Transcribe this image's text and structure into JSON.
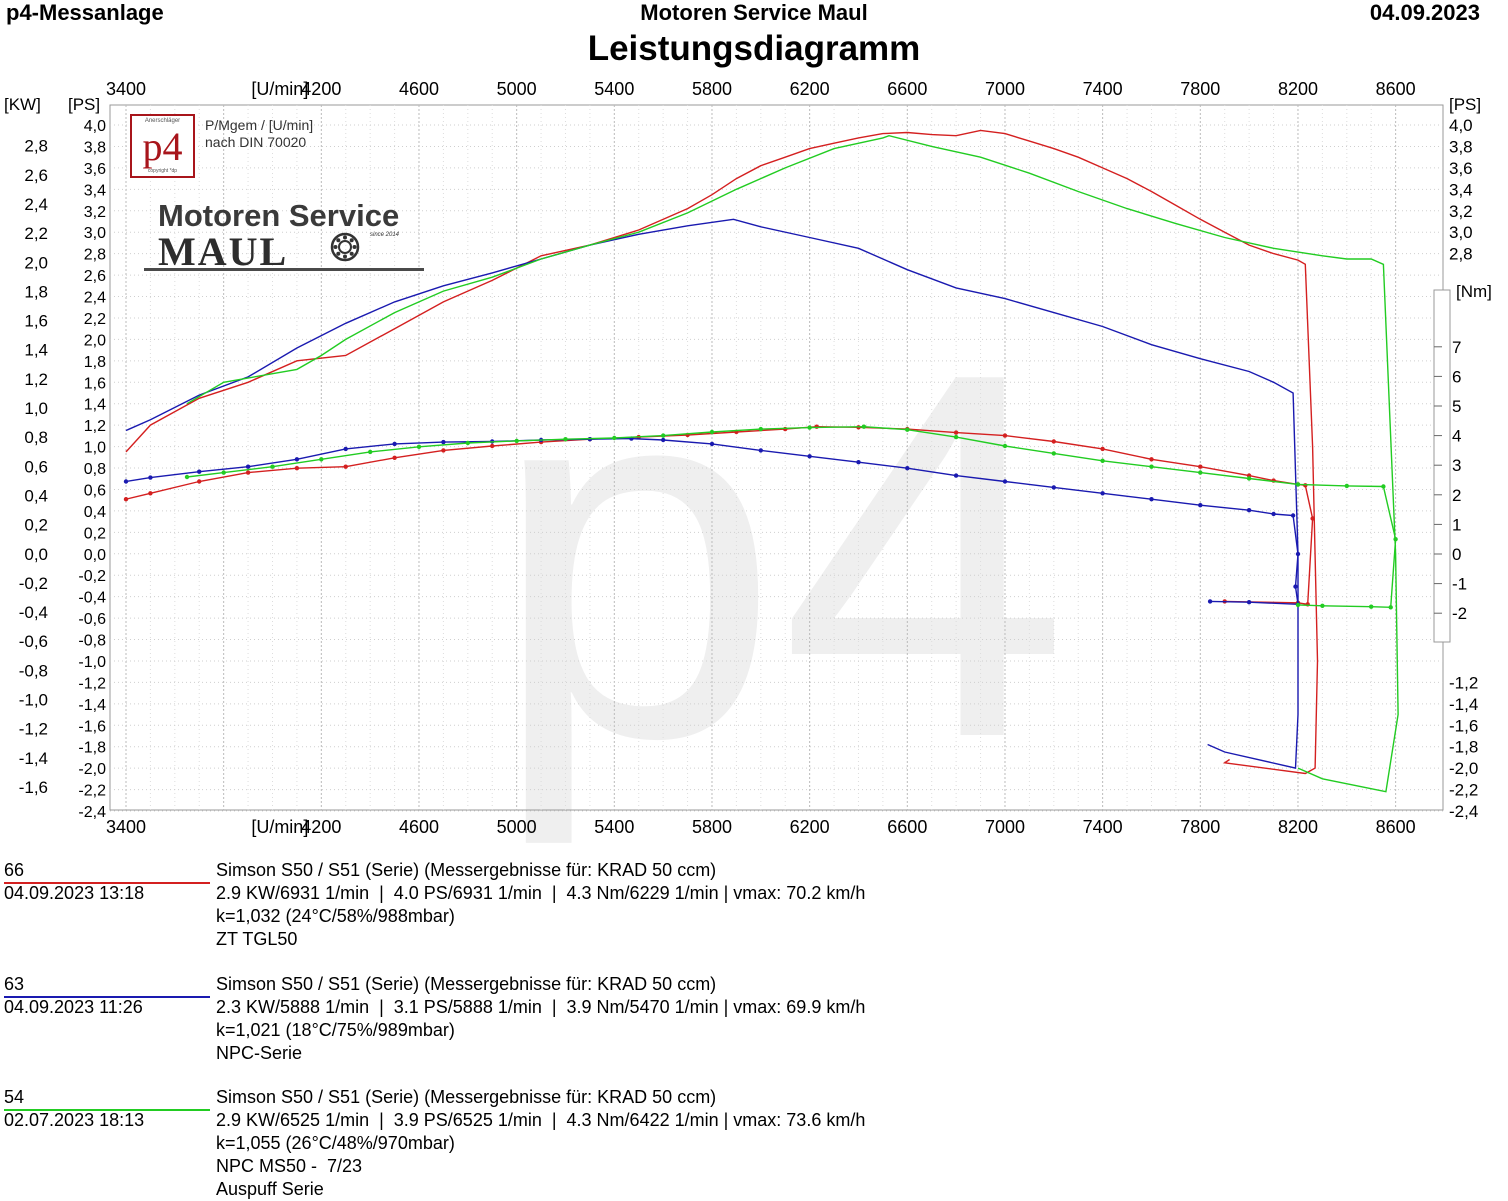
{
  "header": {
    "left": "p4-Messanlage",
    "center": "Motoren Service Maul",
    "right": "04.09.2023",
    "title": "Leistungsdiagramm"
  },
  "logos": {
    "p4_mark_top": "Anerschläger",
    "p4_mark": "p4",
    "p4_mark_bottom": "copyright *dp",
    "brand_line1": "Motoren Service",
    "brand_line2": "MAUL",
    "brand_since": "since 2014"
  },
  "annotation": {
    "line1": "P/Mgem / [U/min]",
    "line2": "nach DIN 70020"
  },
  "chart_data": {
    "type": "line",
    "title": "Leistungsdiagramm",
    "x_axis": {
      "label": "[U/min]",
      "range": [
        3400,
        8700
      ],
      "ticks": [
        3400,
        4200,
        4600,
        5000,
        5400,
        5800,
        6200,
        6600,
        7000,
        7400,
        7800,
        8200,
        8600
      ]
    },
    "kw_axis": {
      "label": "[KW]",
      "ticks": [
        "2,8",
        "2,6",
        "2,4",
        "2,2",
        "2,0",
        "1,8",
        "1,6",
        "1,4",
        "1,2",
        "1,0",
        "0,8",
        "0,6",
        "0,4",
        "0,2",
        "0,0",
        "-0,2",
        "-0,4",
        "-0,6",
        "-0,8",
        "-1,0",
        "-1,2",
        "-1,4",
        "-1,6"
      ]
    },
    "ps_axis": {
      "label": "[PS]",
      "range": [
        -2.4,
        4.0
      ],
      "ticks": [
        "4,0",
        "3,8",
        "3,6",
        "3,4",
        "3,2",
        "3,0",
        "2,8",
        "2,6",
        "2,4",
        "2,2",
        "2,0",
        "1,8",
        "1,6",
        "1,4",
        "1,2",
        "1,0",
        "0,8",
        "0,6",
        "0,4",
        "0,2",
        "0,0",
        "-0,2",
        "-0,4",
        "-0,6",
        "-0,8",
        "-1,0",
        "-1,2",
        "-1,4",
        "-1,6",
        "-1,8",
        "-2,0",
        "-2,2",
        "-2,4"
      ]
    },
    "right_ps_axis": {
      "label": "[PS]",
      "ticks": [
        "4,0",
        "3,8",
        "3,6",
        "3,4",
        "3,2",
        "3,0",
        "2,8",
        "-1,2",
        "-1,4",
        "-1,6",
        "-1,8",
        "-2,0",
        "-2,2",
        "-2,4"
      ]
    },
    "nm_axis": {
      "label": "[Nm]",
      "range": [
        -2,
        7
      ],
      "ticks": [
        "7",
        "6",
        "5",
        "4",
        "3",
        "2",
        "1",
        "0",
        "-1",
        "-2"
      ]
    },
    "grid": true,
    "watermark": "p4",
    "series": [
      {
        "name": "66",
        "color": "#d42020",
        "power_ps": [
          [
            3400,
            0.95
          ],
          [
            3500,
            1.2
          ],
          [
            3700,
            1.45
          ],
          [
            3900,
            1.6
          ],
          [
            4100,
            1.8
          ],
          [
            4300,
            1.85
          ],
          [
            4500,
            2.1
          ],
          [
            4700,
            2.35
          ],
          [
            4900,
            2.55
          ],
          [
            5100,
            2.78
          ],
          [
            5300,
            2.88
          ],
          [
            5500,
            3.02
          ],
          [
            5700,
            3.22
          ],
          [
            5800,
            3.35
          ],
          [
            5900,
            3.5
          ],
          [
            6000,
            3.62
          ],
          [
            6100,
            3.7
          ],
          [
            6200,
            3.78
          ],
          [
            6300,
            3.83
          ],
          [
            6400,
            3.88
          ],
          [
            6500,
            3.92
          ],
          [
            6600,
            3.93
          ],
          [
            6700,
            3.91
          ],
          [
            6800,
            3.9
          ],
          [
            6900,
            3.95
          ],
          [
            7000,
            3.92
          ],
          [
            7100,
            3.85
          ],
          [
            7200,
            3.78
          ],
          [
            7300,
            3.7
          ],
          [
            7400,
            3.6
          ],
          [
            7500,
            3.5
          ],
          [
            7600,
            3.38
          ],
          [
            7700,
            3.25
          ],
          [
            7800,
            3.12
          ],
          [
            7900,
            3.0
          ],
          [
            8000,
            2.88
          ],
          [
            8100,
            2.8
          ],
          [
            8200,
            2.74
          ],
          [
            8230,
            2.7
          ],
          [
            8260,
            1.0
          ],
          [
            8280,
            -1.0
          ],
          [
            8270,
            -2.0
          ],
          [
            8230,
            -2.05
          ],
          [
            7900,
            -1.95
          ],
          [
            7920,
            -1.92
          ]
        ],
        "torque_nm": [
          [
            3400,
            1.85
          ],
          [
            3500,
            2.05
          ],
          [
            3700,
            2.45
          ],
          [
            3900,
            2.75
          ],
          [
            4100,
            2.9
          ],
          [
            4300,
            2.95
          ],
          [
            4500,
            3.25
          ],
          [
            4700,
            3.5
          ],
          [
            4900,
            3.65
          ],
          [
            5100,
            3.78
          ],
          [
            5300,
            3.88
          ],
          [
            5500,
            3.95
          ],
          [
            5700,
            4.02
          ],
          [
            5900,
            4.12
          ],
          [
            6100,
            4.22
          ],
          [
            6229,
            4.3
          ],
          [
            6400,
            4.28
          ],
          [
            6600,
            4.22
          ],
          [
            6800,
            4.1
          ],
          [
            7000,
            4.0
          ],
          [
            7200,
            3.8
          ],
          [
            7400,
            3.55
          ],
          [
            7600,
            3.2
          ],
          [
            7800,
            2.95
          ],
          [
            8000,
            2.65
          ],
          [
            8100,
            2.48
          ],
          [
            8200,
            2.35
          ],
          [
            8230,
            2.32
          ],
          [
            8260,
            1.2
          ],
          [
            8240,
            -1.7
          ],
          [
            8200,
            -1.65
          ],
          [
            7900,
            -1.6
          ]
        ]
      },
      {
        "name": "63",
        "color": "#1a1ab0",
        "power_ps": [
          [
            3400,
            1.15
          ],
          [
            3500,
            1.25
          ],
          [
            3700,
            1.48
          ],
          [
            3900,
            1.65
          ],
          [
            4100,
            1.92
          ],
          [
            4300,
            2.15
          ],
          [
            4500,
            2.35
          ],
          [
            4700,
            2.5
          ],
          [
            4900,
            2.62
          ],
          [
            5100,
            2.75
          ],
          [
            5300,
            2.88
          ],
          [
            5500,
            2.98
          ],
          [
            5700,
            3.06
          ],
          [
            5888,
            3.12
          ],
          [
            6000,
            3.05
          ],
          [
            6200,
            2.95
          ],
          [
            6400,
            2.85
          ],
          [
            6600,
            2.65
          ],
          [
            6800,
            2.48
          ],
          [
            7000,
            2.38
          ],
          [
            7200,
            2.25
          ],
          [
            7400,
            2.12
          ],
          [
            7600,
            1.95
          ],
          [
            7800,
            1.82
          ],
          [
            8000,
            1.7
          ],
          [
            8100,
            1.6
          ],
          [
            8180,
            1.5
          ],
          [
            8200,
            0.0
          ],
          [
            8200,
            -1.5
          ],
          [
            8190,
            -2.0
          ],
          [
            7900,
            -1.85
          ],
          [
            7830,
            -1.78
          ]
        ],
        "torque_nm": [
          [
            3400,
            2.45
          ],
          [
            3500,
            2.58
          ],
          [
            3700,
            2.78
          ],
          [
            3900,
            2.95
          ],
          [
            4100,
            3.2
          ],
          [
            4300,
            3.55
          ],
          [
            4500,
            3.72
          ],
          [
            4700,
            3.78
          ],
          [
            4900,
            3.8
          ],
          [
            5100,
            3.85
          ],
          [
            5300,
            3.88
          ],
          [
            5470,
            3.9
          ],
          [
            5600,
            3.85
          ],
          [
            5800,
            3.72
          ],
          [
            6000,
            3.5
          ],
          [
            6200,
            3.3
          ],
          [
            6400,
            3.1
          ],
          [
            6600,
            2.9
          ],
          [
            6800,
            2.65
          ],
          [
            7000,
            2.45
          ],
          [
            7200,
            2.25
          ],
          [
            7400,
            2.05
          ],
          [
            7600,
            1.85
          ],
          [
            7800,
            1.65
          ],
          [
            8000,
            1.48
          ],
          [
            8100,
            1.35
          ],
          [
            8180,
            1.3
          ],
          [
            8200,
            0.0
          ],
          [
            8190,
            -1.1
          ],
          [
            8200,
            -1.7
          ],
          [
            8000,
            -1.63
          ],
          [
            7840,
            -1.6
          ]
        ]
      },
      {
        "name": "54",
        "color": "#22cc22",
        "power_ps": [
          [
            3650,
            1.4
          ],
          [
            3800,
            1.6
          ],
          [
            4000,
            1.68
          ],
          [
            4100,
            1.72
          ],
          [
            4200,
            1.85
          ],
          [
            4300,
            2.0
          ],
          [
            4500,
            2.25
          ],
          [
            4700,
            2.45
          ],
          [
            4900,
            2.58
          ],
          [
            5100,
            2.75
          ],
          [
            5300,
            2.88
          ],
          [
            5500,
            3.0
          ],
          [
            5700,
            3.18
          ],
          [
            5900,
            3.4
          ],
          [
            6100,
            3.6
          ],
          [
            6300,
            3.78
          ],
          [
            6500,
            3.88
          ],
          [
            6525,
            3.9
          ],
          [
            6700,
            3.8
          ],
          [
            6900,
            3.7
          ],
          [
            7100,
            3.55
          ],
          [
            7300,
            3.38
          ],
          [
            7500,
            3.22
          ],
          [
            7700,
            3.08
          ],
          [
            7900,
            2.95
          ],
          [
            8100,
            2.85
          ],
          [
            8300,
            2.78
          ],
          [
            8400,
            2.75
          ],
          [
            8500,
            2.75
          ],
          [
            8550,
            2.7
          ],
          [
            8600,
            0.0
          ],
          [
            8610,
            -1.5
          ],
          [
            8560,
            -2.22
          ],
          [
            8300,
            -2.1
          ],
          [
            8200,
            -2.0
          ]
        ],
        "torque_nm": [
          [
            3650,
            2.6
          ],
          [
            3800,
            2.75
          ],
          [
            4000,
            2.95
          ],
          [
            4200,
            3.2
          ],
          [
            4400,
            3.45
          ],
          [
            4600,
            3.62
          ],
          [
            4800,
            3.75
          ],
          [
            5000,
            3.82
          ],
          [
            5200,
            3.88
          ],
          [
            5400,
            3.92
          ],
          [
            5600,
            4.0
          ],
          [
            5800,
            4.12
          ],
          [
            6000,
            4.22
          ],
          [
            6200,
            4.27
          ],
          [
            6422,
            4.3
          ],
          [
            6600,
            4.2
          ],
          [
            6800,
            3.95
          ],
          [
            7000,
            3.65
          ],
          [
            7200,
            3.4
          ],
          [
            7400,
            3.15
          ],
          [
            7600,
            2.95
          ],
          [
            7800,
            2.75
          ],
          [
            8000,
            2.55
          ],
          [
            8200,
            2.35
          ],
          [
            8400,
            2.3
          ],
          [
            8550,
            2.28
          ],
          [
            8600,
            0.5
          ],
          [
            8580,
            -1.8
          ],
          [
            8500,
            -1.78
          ],
          [
            8300,
            -1.75
          ],
          [
            8200,
            -1.72
          ]
        ]
      }
    ]
  },
  "runs": [
    {
      "number": "66",
      "datetime": "04.09.2023   13:18",
      "color": "#d42020",
      "lines": [
        "Simson S50 / S51 (Serie) (Messergebnisse für: KRAD 50 ccm)",
        "2.9 KW/6931 1/min  |  4.0 PS/6931 1/min  |  4.3 Nm/6229 1/min | vmax: 70.2 km/h",
        "k=1,032 (24°C/58%/988mbar)",
        "ZT TGL50"
      ]
    },
    {
      "number": "63",
      "datetime": "04.09.2023   11:26",
      "color": "#1a1ab0",
      "lines": [
        "Simson S50 / S51 (Serie) (Messergebnisse für: KRAD 50 ccm)",
        "2.3 KW/5888 1/min  |  3.1 PS/5888 1/min  |  3.9 Nm/5470 1/min | vmax: 69.9 km/h",
        "k=1,021 (18°C/75%/989mbar)",
        "NPC-Serie"
      ]
    },
    {
      "number": "54",
      "datetime": "02.07.2023   18:13",
      "color": "#22cc22",
      "lines": [
        "Simson S50 / S51 (Serie) (Messergebnisse für: KRAD 50 ccm)",
        "2.9 KW/6525 1/min  |  3.9 PS/6525 1/min  |  4.3 Nm/6422 1/min | vmax: 73.6 km/h",
        "k=1,055 (26°C/48%/970mbar)",
        "NPC MS50 -  7/23",
        "Auspuff Serie"
      ]
    }
  ]
}
